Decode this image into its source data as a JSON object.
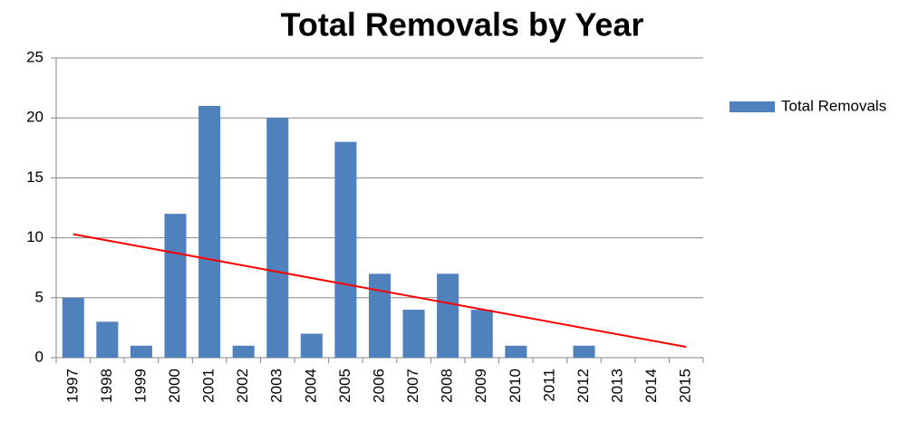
{
  "chart_data": {
    "type": "bar",
    "title": "Total Removals by Year",
    "categories": [
      "1997",
      "1998",
      "1999",
      "2000",
      "2001",
      "2002",
      "2003",
      "2004",
      "2005",
      "2006",
      "2007",
      "2008",
      "2009",
      "2010",
      "2011",
      "2012",
      "2013",
      "2014",
      "2015"
    ],
    "series": [
      {
        "name": "Total Removals",
        "color": "#4f81bd",
        "values": [
          5,
          3,
          1,
          12,
          21,
          1,
          20,
          2,
          18,
          7,
          4,
          7,
          4,
          1,
          0,
          1,
          0,
          0,
          0
        ]
      }
    ],
    "trendline": {
      "color": "#ff0000",
      "categories": [
        "1997",
        "2015"
      ],
      "values": [
        10.3,
        0.9
      ]
    },
    "ylim": [
      0,
      25
    ],
    "yticks": [
      0,
      5,
      10,
      15,
      20,
      25
    ],
    "grid": true,
    "legend": "right"
  }
}
